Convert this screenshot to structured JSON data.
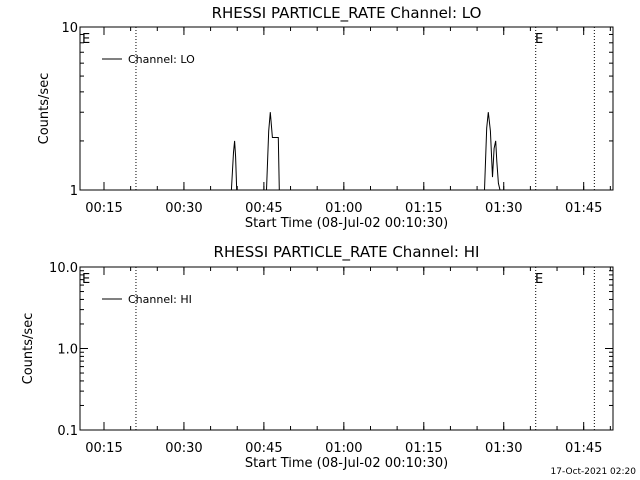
{
  "footer_timestamp": "17-Oct-2021 02:20",
  "chart_data": [
    {
      "type": "line",
      "title": "RHESSI PARTICLE_RATE Channel: LO",
      "xlabel": "Start Time (08-Jul-02 00:10:30)",
      "ylabel": "Counts/sec",
      "yscale": "log",
      "ylim": [
        1,
        10
      ],
      "yticks": [
        {
          "value": 1,
          "label": "1"
        },
        {
          "value": 10,
          "label": "10"
        }
      ],
      "xlim_minutes": [
        0,
        100
      ],
      "xticks": [
        {
          "minute": 4.5,
          "label": "00:15"
        },
        {
          "minute": 19.5,
          "label": "00:30"
        },
        {
          "minute": 34.5,
          "label": "00:45"
        },
        {
          "minute": 49.5,
          "label": "01:00"
        },
        {
          "minute": 64.5,
          "label": "01:15"
        },
        {
          "minute": 79.5,
          "label": "01:30"
        },
        {
          "minute": 94.5,
          "label": "01:45"
        }
      ],
      "grid": false,
      "legend": {
        "position": "top-left",
        "entries": [
          "Channel: LO"
        ]
      },
      "annotations": [
        {
          "text": "E",
          "minute": 0
        },
        {
          "text": "E",
          "minute": 85
        }
      ],
      "event_lines_minutes": [
        10.5,
        85.5,
        96.5
      ],
      "series": [
        {
          "name": "Channel: LO",
          "x": [
            28.4,
            28.8,
            29.0,
            29.2,
            29.4,
            35.0,
            35.4,
            35.7,
            36.1,
            36.8,
            37.2,
            37.4,
            75.9,
            76.3,
            76.6,
            77.0,
            77.4,
            77.7,
            78.0,
            78.2,
            78.5,
            78.8
          ],
          "y": [
            1,
            1.7,
            2.0,
            1.6,
            1,
            1,
            2.3,
            3.0,
            2.1,
            2.1,
            2.1,
            1,
            1,
            2.4,
            3.0,
            2.3,
            1.2,
            1.8,
            2.0,
            1.5,
            1.1,
            1
          ]
        }
      ]
    },
    {
      "type": "line",
      "title": "RHESSI PARTICLE_RATE Channel: HI",
      "xlabel": "Start Time (08-Jul-02 00:10:30)",
      "ylabel": "Counts/sec",
      "yscale": "log",
      "ylim": [
        0.1,
        10
      ],
      "yticks": [
        {
          "value": 0.1,
          "label": "0.1"
        },
        {
          "value": 1,
          "label": "1.0"
        },
        {
          "value": 10,
          "label": "10.0"
        }
      ],
      "xlim_minutes": [
        0,
        100
      ],
      "xticks": [
        {
          "minute": 4.5,
          "label": "00:15"
        },
        {
          "minute": 19.5,
          "label": "00:30"
        },
        {
          "minute": 34.5,
          "label": "00:45"
        },
        {
          "minute": 49.5,
          "label": "01:00"
        },
        {
          "minute": 64.5,
          "label": "01:15"
        },
        {
          "minute": 79.5,
          "label": "01:30"
        },
        {
          "minute": 94.5,
          "label": "01:45"
        }
      ],
      "grid": false,
      "legend": {
        "position": "top-left",
        "entries": [
          "Channel: HI"
        ]
      },
      "annotations": [
        {
          "text": "E",
          "minute": 0
        },
        {
          "text": "E",
          "minute": 85
        }
      ],
      "event_lines_minutes": [
        10.5,
        85.5,
        96.5
      ],
      "series": [
        {
          "name": "Channel: HI",
          "x": [],
          "y": []
        }
      ]
    }
  ]
}
